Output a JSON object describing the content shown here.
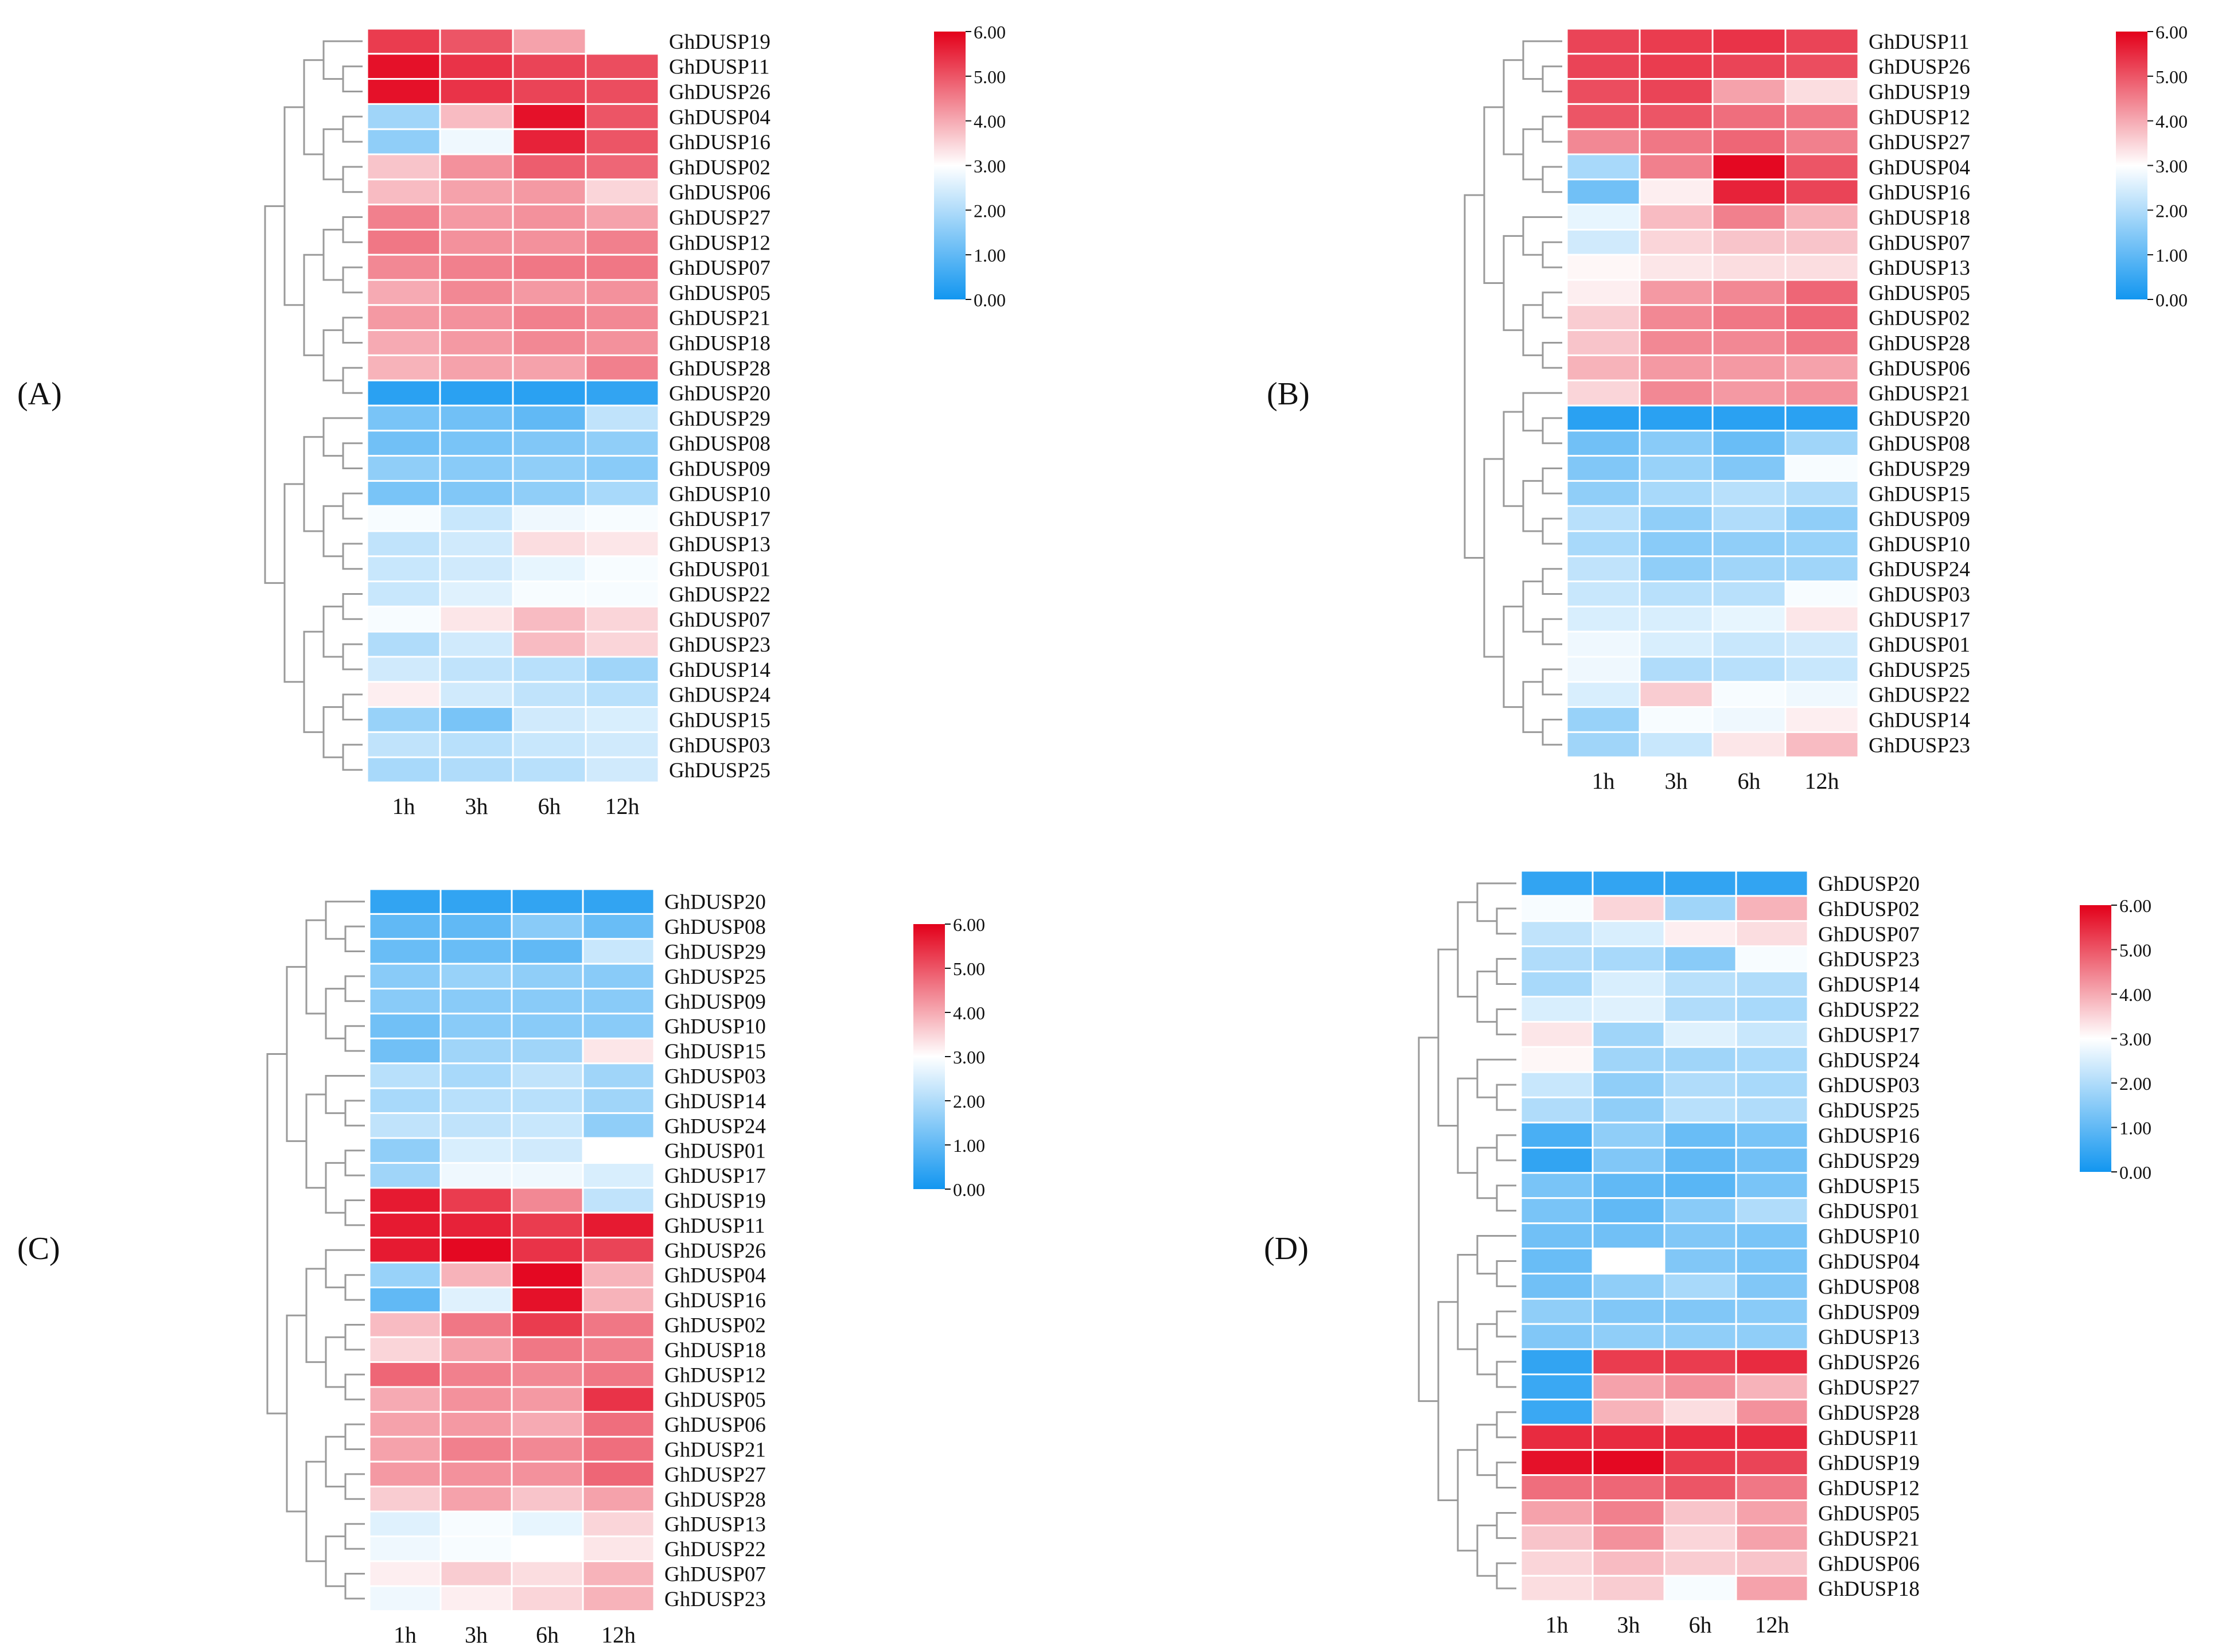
{
  "figure": {
    "panels": [
      "A",
      "B",
      "C",
      "D"
    ],
    "panel_label_format": "(X)"
  },
  "colors": {
    "low": "#1296f0",
    "mid": "#ffffff",
    "high": "#e3001a",
    "dendrogram": "#9a9a9a",
    "cell_border": "#ffffff"
  },
  "chart_data": [
    {
      "type": "heatmap",
      "panel": "A",
      "title": "",
      "columns": [
        "1h",
        "3h",
        "6h",
        "12h"
      ],
      "color_scale": {
        "min": 0,
        "max": 6,
        "ticks": [
          "0.00",
          "1.00",
          "2.00",
          "3.00",
          "4.00",
          "5.00",
          "6.00"
        ]
      },
      "rows": [
        "GhDUSP19",
        "GhDUSP11",
        "GhDUSP26",
        "GhDUSP04",
        "GhDUSP16",
        "GhDUSP02",
        "GhDUSP06",
        "GhDUSP27",
        "GhDUSP12",
        "GhDUSP07",
        "GhDUSP05",
        "GhDUSP21",
        "GhDUSP18",
        "GhDUSP28",
        "GhDUSP20",
        "GhDUSP29",
        "GhDUSP08",
        "GhDUSP09",
        "GhDUSP10",
        "GhDUSP17",
        "GhDUSP13",
        "GhDUSP01",
        "GhDUSP22",
        "GhDUSP07",
        "GhDUSP23",
        "GhDUSP14",
        "GhDUSP24",
        "GhDUSP15",
        "GhDUSP03",
        "GhDUSP25"
      ],
      "values": [
        [
          5.3,
          5.0,
          4.1,
          null
        ],
        [
          5.8,
          5.4,
          5.2,
          5.1
        ],
        [
          5.8,
          5.4,
          5.2,
          5.1
        ],
        [
          1.8,
          3.8,
          5.8,
          5.0
        ],
        [
          1.6,
          2.8,
          5.6,
          5.0
        ],
        [
          3.7,
          4.3,
          4.9,
          4.8
        ],
        [
          3.8,
          4.1,
          4.2,
          3.5
        ],
        [
          4.5,
          4.2,
          4.3,
          4.1
        ],
        [
          4.6,
          4.3,
          4.3,
          4.5
        ],
        [
          4.4,
          4.5,
          4.6,
          4.6
        ],
        [
          4.0,
          4.4,
          4.2,
          4.3
        ],
        [
          4.2,
          4.3,
          4.5,
          4.4
        ],
        [
          4.0,
          4.2,
          4.4,
          4.3
        ],
        [
          3.9,
          4.1,
          4.1,
          4.5
        ],
        [
          0.3,
          0.3,
          0.3,
          0.4
        ],
        [
          1.3,
          1.2,
          1.0,
          2.2
        ],
        [
          1.2,
          1.3,
          1.4,
          1.6
        ],
        [
          1.6,
          1.5,
          1.6,
          1.5
        ],
        [
          1.3,
          1.4,
          1.6,
          1.9
        ],
        [
          2.9,
          2.3,
          2.8,
          2.9
        ],
        [
          2.2,
          2.4,
          3.4,
          3.3
        ],
        [
          2.3,
          2.4,
          2.7,
          2.9
        ],
        [
          2.3,
          2.6,
          2.9,
          2.9
        ],
        [
          2.9,
          3.3,
          3.8,
          3.5
        ],
        [
          2.0,
          2.4,
          3.8,
          3.5
        ],
        [
          2.4,
          2.2,
          2.1,
          1.8
        ],
        [
          3.2,
          2.4,
          2.2,
          2.1
        ],
        [
          1.7,
          1.3,
          2.4,
          2.5
        ],
        [
          2.2,
          2.1,
          2.3,
          2.4
        ],
        [
          1.9,
          2.0,
          2.1,
          2.4
        ]
      ]
    },
    {
      "type": "heatmap",
      "panel": "B",
      "title": "",
      "columns": [
        "1h",
        "3h",
        "6h",
        "12h"
      ],
      "color_scale": {
        "min": 0,
        "max": 6,
        "ticks": [
          "0.00",
          "1.00",
          "2.00",
          "3.00",
          "4.00",
          "5.00",
          "6.00"
        ]
      },
      "rows": [
        "GhDUSP11",
        "GhDUSP26",
        "GhDUSP19",
        "GhDUSP12",
        "GhDUSP27",
        "GhDUSP04",
        "GhDUSP16",
        "GhDUSP18",
        "GhDUSP07",
        "GhDUSP13",
        "GhDUSP05",
        "GhDUSP02",
        "GhDUSP28",
        "GhDUSP06",
        "GhDUSP21",
        "GhDUSP20",
        "GhDUSP08",
        "GhDUSP29",
        "GhDUSP15",
        "GhDUSP09",
        "GhDUSP10",
        "GhDUSP24",
        "GhDUSP03",
        "GhDUSP17",
        "GhDUSP01",
        "GhDUSP25",
        "GhDUSP22",
        "GhDUSP14",
        "GhDUSP23"
      ],
      "values": [
        [
          5.2,
          5.3,
          5.4,
          5.2
        ],
        [
          5.2,
          5.3,
          5.2,
          5.1
        ],
        [
          5.1,
          5.2,
          4.1,
          3.4
        ],
        [
          5.0,
          5.0,
          4.7,
          4.6
        ],
        [
          4.4,
          4.6,
          4.8,
          4.5
        ],
        [
          1.9,
          4.5,
          5.9,
          5.0
        ],
        [
          1.2,
          3.2,
          5.6,
          5.2
        ],
        [
          2.7,
          3.8,
          4.5,
          3.9
        ],
        [
          2.4,
          3.5,
          3.7,
          3.7
        ],
        [
          3.1,
          3.3,
          3.4,
          3.4
        ],
        [
          3.2,
          4.2,
          4.4,
          4.8
        ],
        [
          3.6,
          4.4,
          4.6,
          4.8
        ],
        [
          3.7,
          4.4,
          4.4,
          4.6
        ],
        [
          3.9,
          4.2,
          4.2,
          4.1
        ],
        [
          3.5,
          4.4,
          4.2,
          4.3
        ],
        [
          0.3,
          0.3,
          0.3,
          0.3
        ],
        [
          1.2,
          1.5,
          1.1,
          1.8
        ],
        [
          1.4,
          1.7,
          1.4,
          2.9
        ],
        [
          1.6,
          1.9,
          2.1,
          2.0
        ],
        [
          2.1,
          1.6,
          2.0,
          1.6
        ],
        [
          1.9,
          1.5,
          1.6,
          1.7
        ],
        [
          2.2,
          1.6,
          1.8,
          1.8
        ],
        [
          2.3,
          2.1,
          2.1,
          2.9
        ],
        [
          2.5,
          2.5,
          2.7,
          3.3
        ],
        [
          2.8,
          2.5,
          2.3,
          2.4
        ],
        [
          2.8,
          2.0,
          2.1,
          2.3
        ],
        [
          2.5,
          3.6,
          2.9,
          2.8
        ],
        [
          1.7,
          2.9,
          2.8,
          3.2
        ],
        [
          1.8,
          2.3,
          3.3,
          3.8
        ]
      ]
    },
    {
      "type": "heatmap",
      "panel": "C",
      "title": "",
      "columns": [
        "1h",
        "3h",
        "6h",
        "12h"
      ],
      "color_scale": {
        "min": 0,
        "max": 6,
        "ticks": [
          "0.00",
          "1.00",
          "2.00",
          "3.00",
          "4.00",
          "5.00",
          "6.00"
        ]
      },
      "rows": [
        "GhDUSP20",
        "GhDUSP08",
        "GhDUSP29",
        "GhDUSP25",
        "GhDUSP09",
        "GhDUSP10",
        "GhDUSP15",
        "GhDUSP03",
        "GhDUSP14",
        "GhDUSP24",
        "GhDUSP01",
        "GhDUSP17",
        "GhDUSP19",
        "GhDUSP11",
        "GhDUSP26",
        "GhDUSP04",
        "GhDUSP16",
        "GhDUSP02",
        "GhDUSP18",
        "GhDUSP12",
        "GhDUSP05",
        "GhDUSP06",
        "GhDUSP21",
        "GhDUSP27",
        "GhDUSP28",
        "GhDUSP13",
        "GhDUSP22",
        "GhDUSP07",
        "GhDUSP23"
      ],
      "values": [
        [
          0.4,
          0.4,
          0.4,
          0.4
        ],
        [
          1.0,
          1.0,
          1.5,
          1.1
        ],
        [
          1.1,
          1.1,
          1.0,
          2.3
        ],
        [
          1.5,
          1.7,
          1.6,
          1.5
        ],
        [
          1.5,
          1.5,
          1.5,
          1.5
        ],
        [
          1.2,
          1.5,
          1.5,
          1.5
        ],
        [
          1.2,
          1.8,
          1.8,
          3.3
        ],
        [
          2.1,
          1.9,
          2.2,
          1.8
        ],
        [
          1.9,
          2.1,
          2.1,
          1.8
        ],
        [
          2.2,
          2.2,
          2.3,
          1.6
        ],
        [
          1.6,
          2.5,
          2.4,
          3.0
        ],
        [
          1.8,
          2.8,
          2.8,
          2.5
        ],
        [
          5.7,
          5.3,
          4.4,
          2.2
        ],
        [
          5.7,
          5.6,
          5.3,
          5.7
        ],
        [
          5.7,
          5.9,
          5.4,
          5.2
        ],
        [
          1.7,
          3.9,
          5.9,
          3.9
        ],
        [
          1.0,
          2.6,
          5.8,
          3.9
        ],
        [
          3.8,
          4.6,
          5.3,
          4.6
        ],
        [
          3.5,
          4.1,
          4.6,
          4.5
        ],
        [
          4.8,
          4.5,
          4.4,
          4.6
        ],
        [
          4.0,
          4.3,
          4.2,
          5.4
        ],
        [
          4.1,
          4.2,
          4.0,
          4.7
        ],
        [
          4.1,
          4.5,
          4.4,
          4.7
        ],
        [
          4.2,
          4.3,
          4.3,
          4.8
        ],
        [
          3.6,
          4.1,
          3.7,
          4.1
        ],
        [
          2.6,
          2.9,
          2.7,
          3.5
        ],
        [
          2.8,
          2.9,
          3.0,
          3.3
        ],
        [
          3.2,
          3.6,
          3.4,
          3.9
        ],
        [
          2.8,
          3.2,
          3.5,
          3.9
        ]
      ]
    },
    {
      "type": "heatmap",
      "panel": "D",
      "title": "",
      "columns": [
        "1h",
        "3h",
        "6h",
        "12h"
      ],
      "color_scale": {
        "min": 0,
        "max": 6,
        "ticks": [
          "0.00",
          "1.00",
          "2.00",
          "3.00",
          "4.00",
          "5.00",
          "6.00"
        ]
      },
      "rows": [
        "GhDUSP20",
        "GhDUSP02",
        "GhDUSP07",
        "GhDUSP23",
        "GhDUSP14",
        "GhDUSP22",
        "GhDUSP17",
        "GhDUSP24",
        "GhDUSP03",
        "GhDUSP25",
        "GhDUSP16",
        "GhDUSP29",
        "GhDUSP15",
        "GhDUSP01",
        "GhDUSP10",
        "GhDUSP04",
        "GhDUSP08",
        "GhDUSP09",
        "GhDUSP13",
        "GhDUSP26",
        "GhDUSP27",
        "GhDUSP28",
        "GhDUSP11",
        "GhDUSP19",
        "GhDUSP12",
        "GhDUSP05",
        "GhDUSP21",
        "GhDUSP06",
        "GhDUSP18"
      ],
      "values": [
        [
          0.4,
          0.4,
          0.4,
          0.4
        ],
        [
          2.9,
          3.5,
          1.8,
          3.9
        ],
        [
          2.2,
          2.5,
          3.2,
          3.4
        ],
        [
          2.0,
          1.9,
          1.5,
          2.9
        ],
        [
          1.9,
          2.5,
          2.1,
          2.0
        ],
        [
          2.5,
          2.6,
          2.0,
          1.9
        ],
        [
          3.3,
          1.8,
          2.6,
          2.3
        ],
        [
          3.1,
          1.8,
          1.8,
          1.9
        ],
        [
          2.3,
          1.6,
          2.0,
          1.9
        ],
        [
          2.0,
          1.6,
          2.1,
          2.0
        ],
        [
          0.7,
          1.6,
          1.1,
          1.3
        ],
        [
          0.4,
          1.4,
          1.0,
          1.2
        ],
        [
          1.3,
          1.0,
          0.9,
          1.3
        ],
        [
          1.3,
          1.0,
          1.5,
          2.0
        ],
        [
          1.2,
          1.2,
          1.4,
          1.3
        ],
        [
          1.1,
          3.0,
          1.4,
          1.3
        ],
        [
          1.2,
          1.6,
          1.9,
          1.4
        ],
        [
          1.6,
          1.4,
          1.4,
          1.5
        ],
        [
          1.4,
          1.6,
          1.6,
          1.6
        ],
        [
          0.4,
          5.3,
          5.3,
          5.5
        ],
        [
          0.5,
          4.1,
          4.3,
          3.9
        ],
        [
          0.5,
          3.9,
          3.4,
          4.3
        ],
        [
          5.5,
          5.5,
          5.5,
          5.5
        ],
        [
          5.8,
          5.9,
          5.3,
          5.2
        ],
        [
          4.7,
          4.8,
          5.0,
          4.6
        ],
        [
          4.1,
          4.5,
          3.7,
          4.1
        ],
        [
          3.7,
          4.3,
          3.5,
          4.1
        ],
        [
          3.5,
          3.8,
          3.6,
          3.7
        ],
        [
          3.4,
          3.6,
          2.9,
          4.1
        ]
      ]
    }
  ]
}
